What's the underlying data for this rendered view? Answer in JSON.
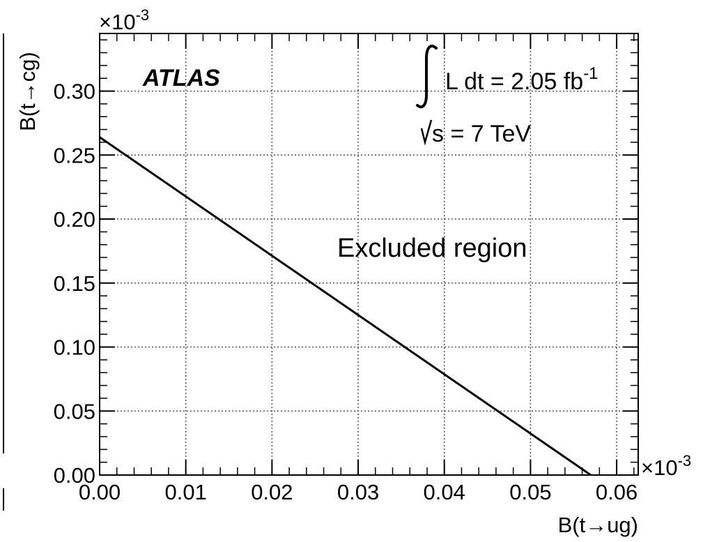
{
  "chart_data": {
    "type": "line",
    "xlabel": "B(t→ug)",
    "ylabel": "B(t→cg)",
    "xlim": [
      0.0,
      0.0625
    ],
    "ylim": [
      0.0,
      0.345
    ],
    "x_ticks": [
      0.0,
      0.01,
      0.02,
      0.03,
      0.04,
      0.05,
      0.06
    ],
    "x_tick_labels": [
      "0.00",
      "0.01",
      "0.02",
      "0.03",
      "0.04",
      "0.05",
      "0.06"
    ],
    "y_ticks": [
      0.0,
      0.05,
      0.1,
      0.15,
      0.2,
      0.25,
      0.3
    ],
    "y_tick_labels": [
      "0.00",
      "0.05",
      "0.10",
      "0.15",
      "0.20",
      "0.25",
      "0.30"
    ],
    "x_multiplier": "×10",
    "x_multiplier_exp": "-3",
    "y_multiplier": "×10",
    "y_multiplier_exp": "-3",
    "grid": true,
    "series": [
      {
        "x": [
          0.0,
          0.057
        ],
        "y": [
          0.264,
          0.0
        ]
      }
    ],
    "annotations": {
      "experiment": "ATLAS",
      "luminosity_prefix": "L dt = 2.05 fb",
      "luminosity_exp": "-1",
      "energy": "s = 7 TeV",
      "region_label": "Excluded region"
    },
    "colors": {
      "line": "#000000",
      "grid": "#555555",
      "frame": "#000000"
    }
  }
}
